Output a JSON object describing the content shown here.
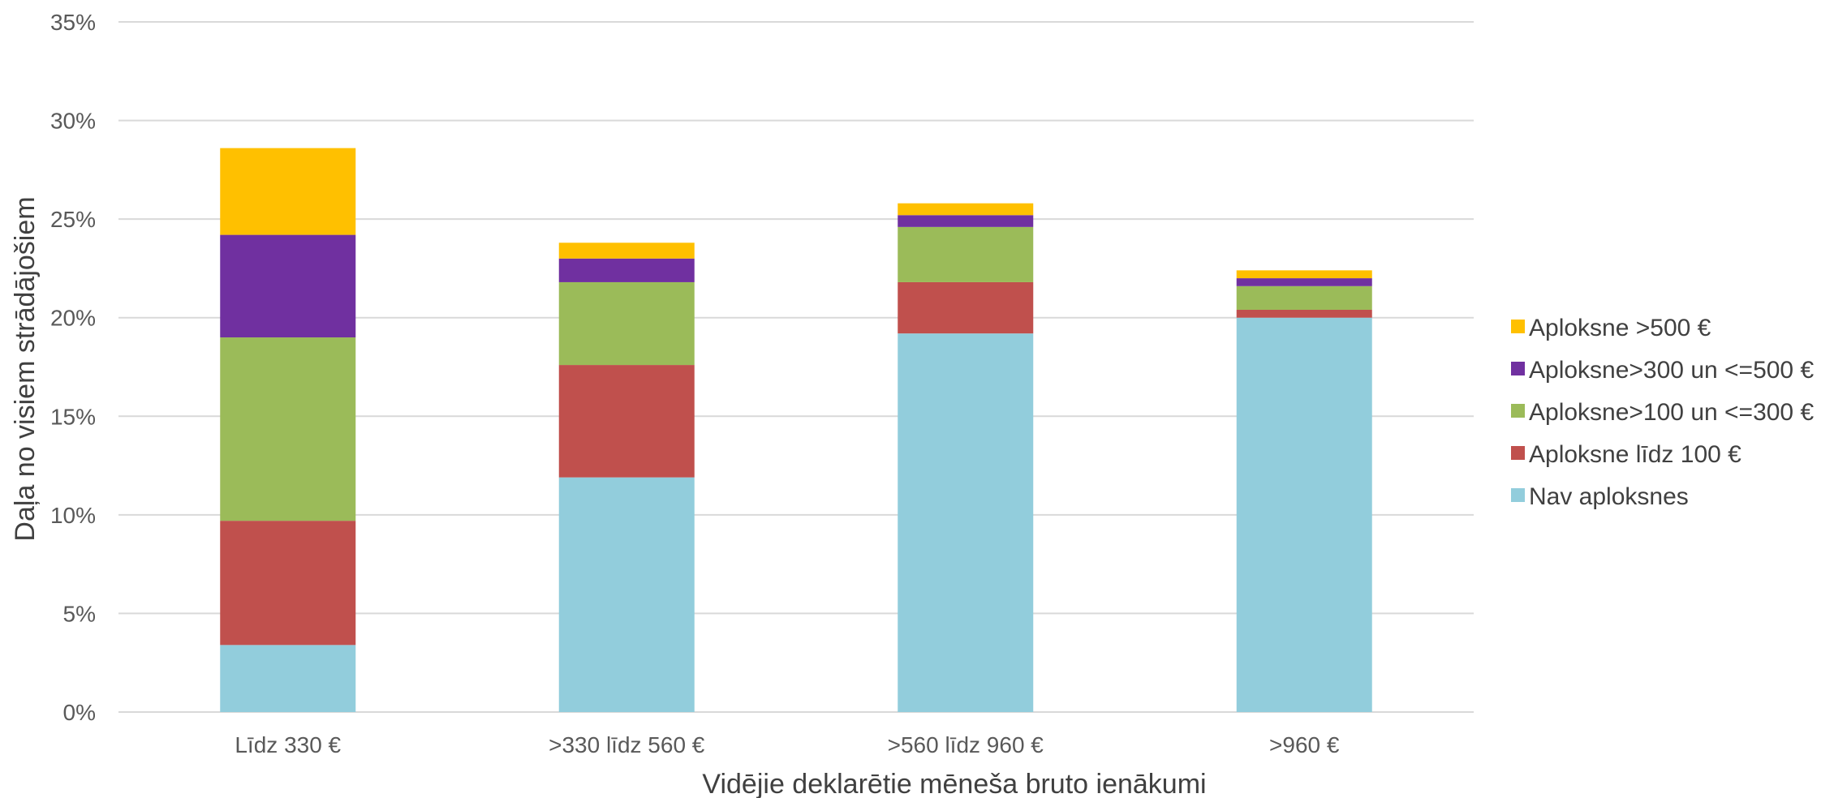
{
  "chart_data": {
    "type": "bar",
    "stacked": true,
    "title": "",
    "xlabel": "Vidējie deklarētie mēneša bruto ienākumi",
    "ylabel": "Daļa no visiem strādājošiem",
    "ylim": [
      0,
      35
    ],
    "yticks": [
      "0%",
      "5%",
      "10%",
      "15%",
      "20%",
      "25%",
      "30%",
      "35%"
    ],
    "ytick_values": [
      0,
      5,
      10,
      15,
      20,
      25,
      30,
      35
    ],
    "grid": true,
    "legend_position": "right",
    "categories": [
      "Līdz 330 €",
      ">330 līdz 560 €",
      ">560 līdz 960 €",
      ">960 €"
    ],
    "series": [
      {
        "name": "Nav aploksnes",
        "color": "#92CDDC",
        "values": [
          3.4,
          11.9,
          19.2,
          20.0
        ]
      },
      {
        "name": "Aploksne līdz 100 €",
        "color": "#C0504D",
        "values": [
          6.3,
          5.7,
          2.6,
          0.4
        ]
      },
      {
        "name": "Aploksne>100 un <=300 €",
        "color": "#9BBB59",
        "values": [
          9.3,
          4.2,
          2.8,
          1.2
        ]
      },
      {
        "name": "Aploksne>300 un <=500 €",
        "color": "#7030A0",
        "values": [
          5.2,
          1.2,
          0.6,
          0.4
        ]
      },
      {
        "name": "Aploksne >500 €",
        "color": "#FFC000",
        "values": [
          4.4,
          0.8,
          0.6,
          0.4
        ]
      }
    ]
  }
}
